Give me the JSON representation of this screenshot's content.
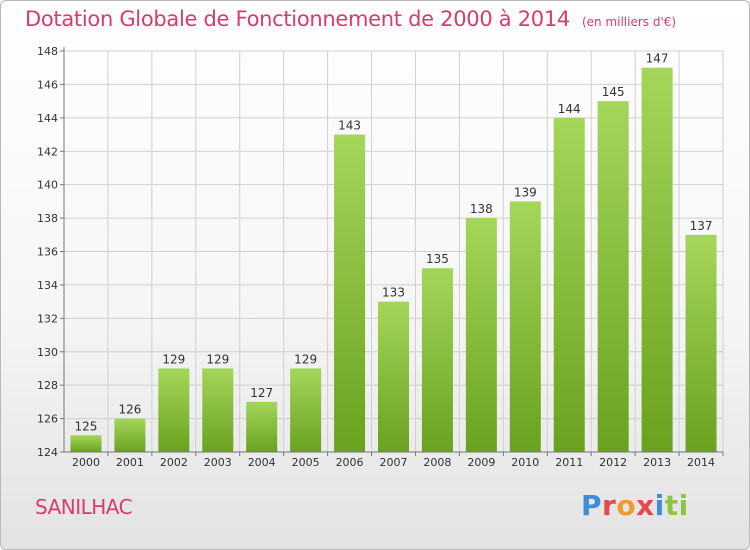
{
  "header": {
    "title": "Dotation Globale de Fonctionnement de 2000 à 2014",
    "unit": "(en milliers d'€)"
  },
  "footer": {
    "commune": "SANILHAC",
    "logo_text": "Proxiti"
  },
  "colors": {
    "title": "#d93b6a",
    "bar_light": "#a4d65a",
    "bar_dark": "#6aa11f",
    "logo": [
      "#3d8fd6",
      "#e8474c",
      "#f29a2e",
      "#e8474c",
      "#3d8fd6",
      "#8cc63f",
      "#8cc63f"
    ]
  },
  "chart_data": {
    "type": "bar",
    "categories": [
      "2000",
      "2001",
      "2002",
      "2003",
      "2004",
      "2005",
      "2006",
      "2007",
      "2008",
      "2009",
      "2010",
      "2011",
      "2012",
      "2013",
      "2014"
    ],
    "values": [
      125,
      126,
      129,
      129,
      127,
      129,
      143,
      133,
      135,
      138,
      139,
      144,
      145,
      147,
      137
    ],
    "ylim": [
      124,
      148
    ],
    "yticks": [
      124,
      126,
      128,
      130,
      132,
      134,
      136,
      138,
      140,
      142,
      144,
      146,
      148
    ],
    "grid": true,
    "xlabel": "",
    "ylabel": ""
  }
}
